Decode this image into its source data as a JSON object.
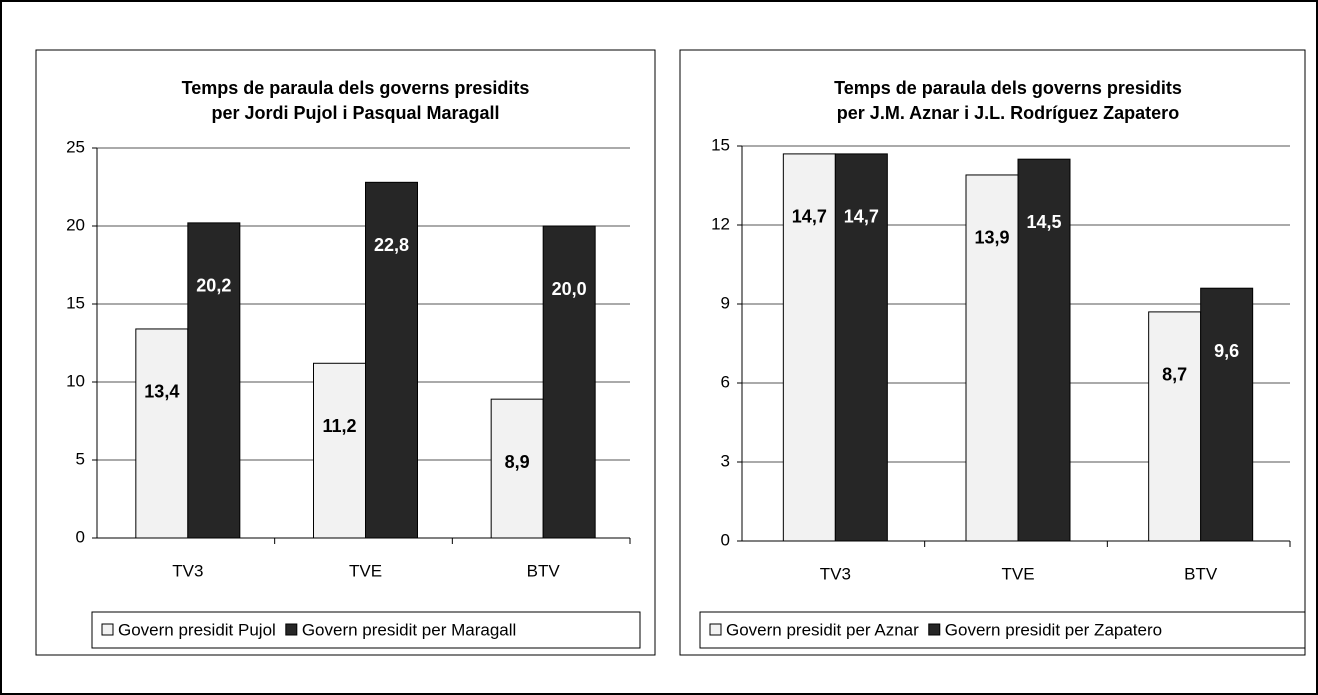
{
  "chart_data": [
    {
      "type": "bar",
      "title": "Temps de paraula dels governs presidits",
      "subtitle": "per Jordi Pujol i Pasqual Maragall",
      "categories": [
        "TV3",
        "TVE",
        "BTV"
      ],
      "series": [
        {
          "name": "Govern presidit Pujol",
          "color": "#f2f2f2",
          "values": [
            13.4,
            11.2,
            8.9
          ],
          "value_labels": [
            "13,4",
            "11,2",
            "8,9"
          ]
        },
        {
          "name": "Govern presidit per Maragall",
          "color": "#262626",
          "values": [
            20.2,
            22.8,
            20.0
          ],
          "value_labels": [
            "20,2",
            "22,8",
            "20,0"
          ]
        }
      ],
      "ylim": [
        0,
        25
      ],
      "yticks": [
        0,
        5,
        10,
        15,
        20,
        25
      ],
      "grid": true,
      "legend": "bottom"
    },
    {
      "type": "bar",
      "title": "Temps de paraula dels governs presidits",
      "subtitle": "per J.M. Aznar i J.L. Rodríguez Zapatero",
      "categories": [
        "TV3",
        "TVE",
        "BTV"
      ],
      "series": [
        {
          "name": "Govern presidit per Aznar",
          "color": "#f2f2f2",
          "values": [
            14.7,
            13.9,
            8.7
          ],
          "value_labels": [
            "14,7",
            "13,9",
            "8,7"
          ]
        },
        {
          "name": "Govern presidit per Zapatero",
          "color": "#262626",
          "values": [
            14.7,
            14.5,
            9.6
          ],
          "value_labels": [
            "14,7",
            "14,5",
            "9,6"
          ]
        }
      ],
      "ylim": [
        0,
        15
      ],
      "yticks": [
        0,
        3,
        6,
        9,
        12,
        15
      ],
      "grid": true,
      "legend": "bottom"
    }
  ]
}
